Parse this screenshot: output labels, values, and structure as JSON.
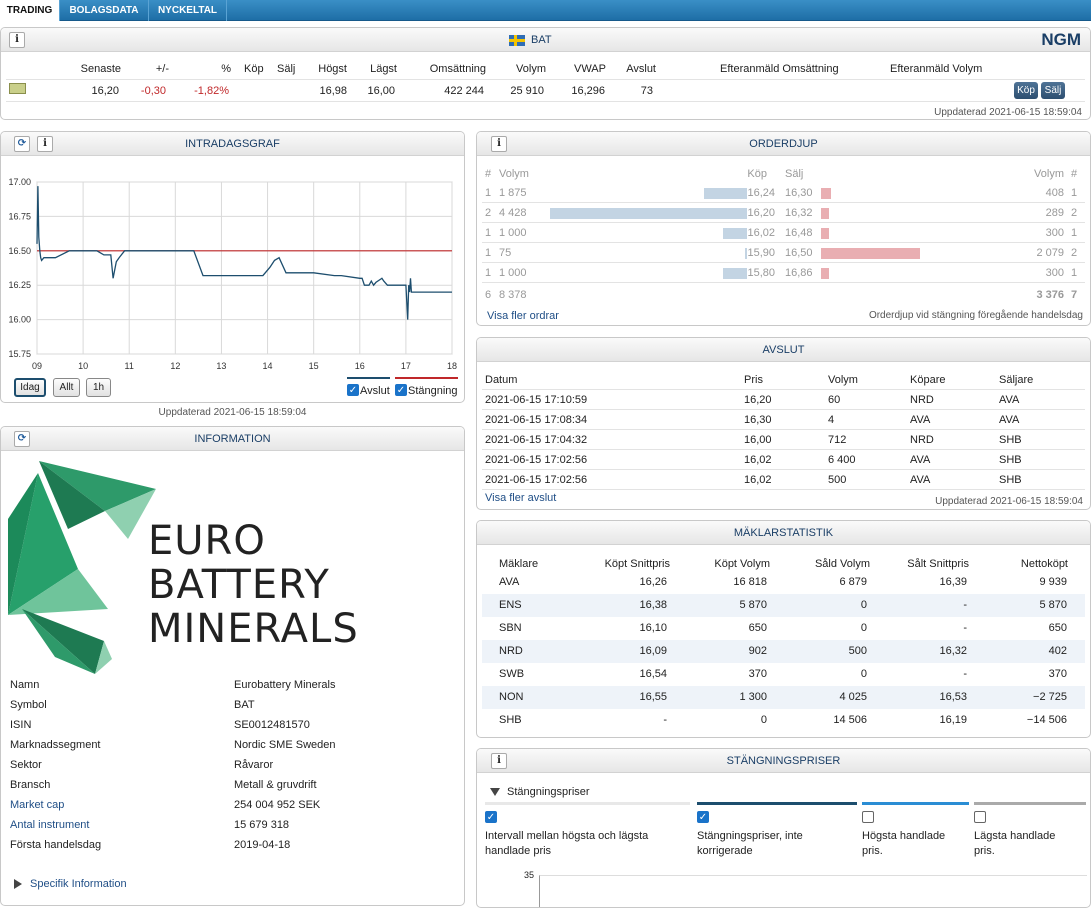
{
  "tabs": [
    "TRADING",
    "BOLAGSDATA",
    "NYCKELTAL"
  ],
  "quote": {
    "title": "BAT",
    "market": "NGM",
    "headers": [
      "Senaste",
      "+/-",
      "%",
      "Köp",
      "Sälj",
      "Högst",
      "Lägst",
      "Omsättning",
      "Volym",
      "VWAP",
      "Avslut",
      "Efteranmäld Omsättning",
      "Efteranmäld Volym"
    ],
    "values": [
      "16,20",
      "-0,30",
      "-1,82%",
      "",
      "",
      "16,98",
      "16,00",
      "422 244",
      "25 910",
      "16,296",
      "73",
      "",
      ""
    ],
    "buy_label": "Köp",
    "sell_label": "Sälj",
    "updated": "Uppdaterad 2021-06-15 18:59:04"
  },
  "intraday": {
    "title": "INTRADAGSGRAF",
    "updated": "Uppdaterad 2021-06-15 18:59:04",
    "buttons": [
      "Idag",
      "Allt",
      "1h"
    ],
    "legend": [
      "Avslut",
      "Stängning"
    ],
    "colors": {
      "line": "#1d4e6e",
      "close": "#c0282a"
    }
  },
  "chart_data": {
    "type": "line",
    "xlim": [
      9,
      18
    ],
    "ylim": [
      15.75,
      17.0
    ],
    "x_ticks": [
      "09",
      "10",
      "11",
      "12",
      "13",
      "14",
      "15",
      "16",
      "17",
      "18"
    ],
    "y_ticks": [
      "17.00",
      "16.75",
      "16.50",
      "16.25",
      "16.00",
      "15.75"
    ],
    "grid": true,
    "reference_line": {
      "name": "Stängning",
      "y": 16.5
    },
    "series": [
      {
        "name": "Avslut",
        "x": [
          9.0,
          9.02,
          9.04,
          9.06,
          9.08,
          9.1,
          9.15,
          9.25,
          9.4,
          9.7,
          10.3,
          10.45,
          10.6,
          10.65,
          10.72,
          10.78,
          10.9,
          12.0,
          12.4,
          12.6,
          13.0,
          13.5,
          13.9,
          14.05,
          14.15,
          14.25,
          14.4,
          15.0,
          15.45,
          15.6,
          16.0,
          16.05,
          16.1,
          16.2,
          16.25,
          16.3,
          16.35,
          16.48,
          16.52,
          16.6,
          17.0,
          17.04,
          17.06,
          17.08,
          17.1,
          17.12,
          17.15,
          17.2,
          17.5,
          18.0
        ],
        "y": [
          16.55,
          16.97,
          16.6,
          16.5,
          16.45,
          16.43,
          16.45,
          16.45,
          16.45,
          16.5,
          16.5,
          16.47,
          16.47,
          16.3,
          16.42,
          16.45,
          16.5,
          16.5,
          16.5,
          16.32,
          16.32,
          16.32,
          16.32,
          16.38,
          16.43,
          16.45,
          16.34,
          16.34,
          16.32,
          16.32,
          16.3,
          16.3,
          16.25,
          16.25,
          16.28,
          16.25,
          16.27,
          16.3,
          16.28,
          16.25,
          16.25,
          16.0,
          16.25,
          16.2,
          16.3,
          16.2,
          16.2,
          16.2,
          16.2,
          16.2
        ]
      }
    ]
  },
  "orderdjup": {
    "title": "ORDERDJUP",
    "headers": {
      "n": "#",
      "vol": "Volym",
      "kop": "Köp",
      "salj": "Sälj",
      "vol2": "Volym",
      "n2": "#"
    },
    "rows": [
      {
        "n": "1",
        "vol": "1 875",
        "kop": "16,24",
        "salj": "16,30",
        "vol2": "408",
        "n2": "1",
        "buy": 0.22,
        "sell": 0.05
      },
      {
        "n": "2",
        "vol": "4 428",
        "kop": "16,20",
        "salj": "16,32",
        "vol2": "289",
        "n2": "2",
        "buy": 1.0,
        "sell": 0.04
      },
      {
        "n": "1",
        "vol": "1 000",
        "kop": "16,02",
        "salj": "16,48",
        "vol2": "300",
        "n2": "1",
        "buy": 0.12,
        "sell": 0.04
      },
      {
        "n": "1",
        "vol": "75",
        "kop": "15,90",
        "salj": "16,50",
        "vol2": "2 079",
        "n2": "2",
        "buy": 0.01,
        "sell": 0.5
      },
      {
        "n": "1",
        "vol": "1 000",
        "kop": "15,80",
        "salj": "16,86",
        "vol2": "300",
        "n2": "1",
        "buy": 0.12,
        "sell": 0.04
      }
    ],
    "total": {
      "n": "6",
      "vol": "8 378",
      "vol2": "3 376",
      "n2": "7"
    },
    "more_link": "Visa fler ordrar",
    "note": "Orderdjup vid stängning föregående handelsdag"
  },
  "avslut": {
    "title": "AVSLUT",
    "headers": [
      "Datum",
      "Pris",
      "Volym",
      "Köpare",
      "Säljare"
    ],
    "rows": [
      [
        "2021-06-15 17:10:59",
        "16,20",
        "60",
        "NRD",
        "AVA"
      ],
      [
        "2021-06-15 17:08:34",
        "16,30",
        "4",
        "AVA",
        "AVA"
      ],
      [
        "2021-06-15 17:04:32",
        "16,00",
        "712",
        "NRD",
        "SHB"
      ],
      [
        "2021-06-15 17:02:56",
        "16,02",
        "6 400",
        "AVA",
        "SHB"
      ],
      [
        "2021-06-15 17:02:56",
        "16,02",
        "500",
        "AVA",
        "SHB"
      ]
    ],
    "more_link": "Visa fler avslut",
    "updated": "Uppdaterad 2021-06-15 18:59:04"
  },
  "maklar": {
    "title": "MÄKLARSTATISTIK",
    "headers": [
      "Mäklare",
      "Köpt Snittpris",
      "Köpt Volym",
      "Såld Volym",
      "Sålt Snittpris",
      "Nettoköpt"
    ],
    "rows": [
      [
        "AVA",
        "16,26",
        "16 818",
        "6 879",
        "16,39",
        "9 939"
      ],
      [
        "ENS",
        "16,38",
        "5 870",
        "0",
        "-",
        "5 870"
      ],
      [
        "SBN",
        "16,10",
        "650",
        "0",
        "-",
        "650"
      ],
      [
        "NRD",
        "16,09",
        "902",
        "500",
        "16,32",
        "402"
      ],
      [
        "SWB",
        "16,54",
        "370",
        "0",
        "-",
        "370"
      ],
      [
        "NON",
        "16,55",
        "1 300",
        "4 025",
        "16,53",
        "−2 725"
      ],
      [
        "SHB",
        "-",
        "0",
        "14 506",
        "16,19",
        "−14 506"
      ]
    ]
  },
  "information": {
    "title": "INFORMATION",
    "logo_text": [
      "EURO",
      "BATTERY",
      "MINERALS"
    ],
    "rows": [
      {
        "label": "Namn",
        "value": "Eurobattery Minerals",
        "link": false
      },
      {
        "label": "Symbol",
        "value": "BAT",
        "link": false
      },
      {
        "label": "ISIN",
        "value": "SE0012481570",
        "link": false
      },
      {
        "label": "Marknadssegment",
        "value": "Nordic SME Sweden",
        "link": false
      },
      {
        "label": "Sektor",
        "value": "Råvaror",
        "link": false
      },
      {
        "label": "Bransch",
        "value": "Metall & gruvdrift",
        "link": false
      },
      {
        "label": "Market cap",
        "value": "254 004 952 SEK",
        "link": true
      },
      {
        "label": "Antal instrument",
        "value": "15 679 318",
        "link": true
      },
      {
        "label": "Första handelsdag",
        "value": "2019-04-18",
        "link": false
      }
    ],
    "specific": "Specifik Information"
  },
  "closing": {
    "title": "STÄNGNINGSPRISER",
    "section": "Stängningspriser",
    "options": [
      {
        "label": "Intervall mellan högsta och lägsta handlade pris",
        "checked": true,
        "color": "#e8e8e8"
      },
      {
        "label": "Stängningspriser, inte korrigerade",
        "checked": true,
        "color": "#1d4e6e"
      },
      {
        "label": "Högsta handlade pris.",
        "checked": false,
        "color": "#2a8dd4"
      },
      {
        "label": "Lägsta handlade pris.",
        "checked": false,
        "color": "#aaaaaa"
      }
    ],
    "y_top": "35"
  }
}
